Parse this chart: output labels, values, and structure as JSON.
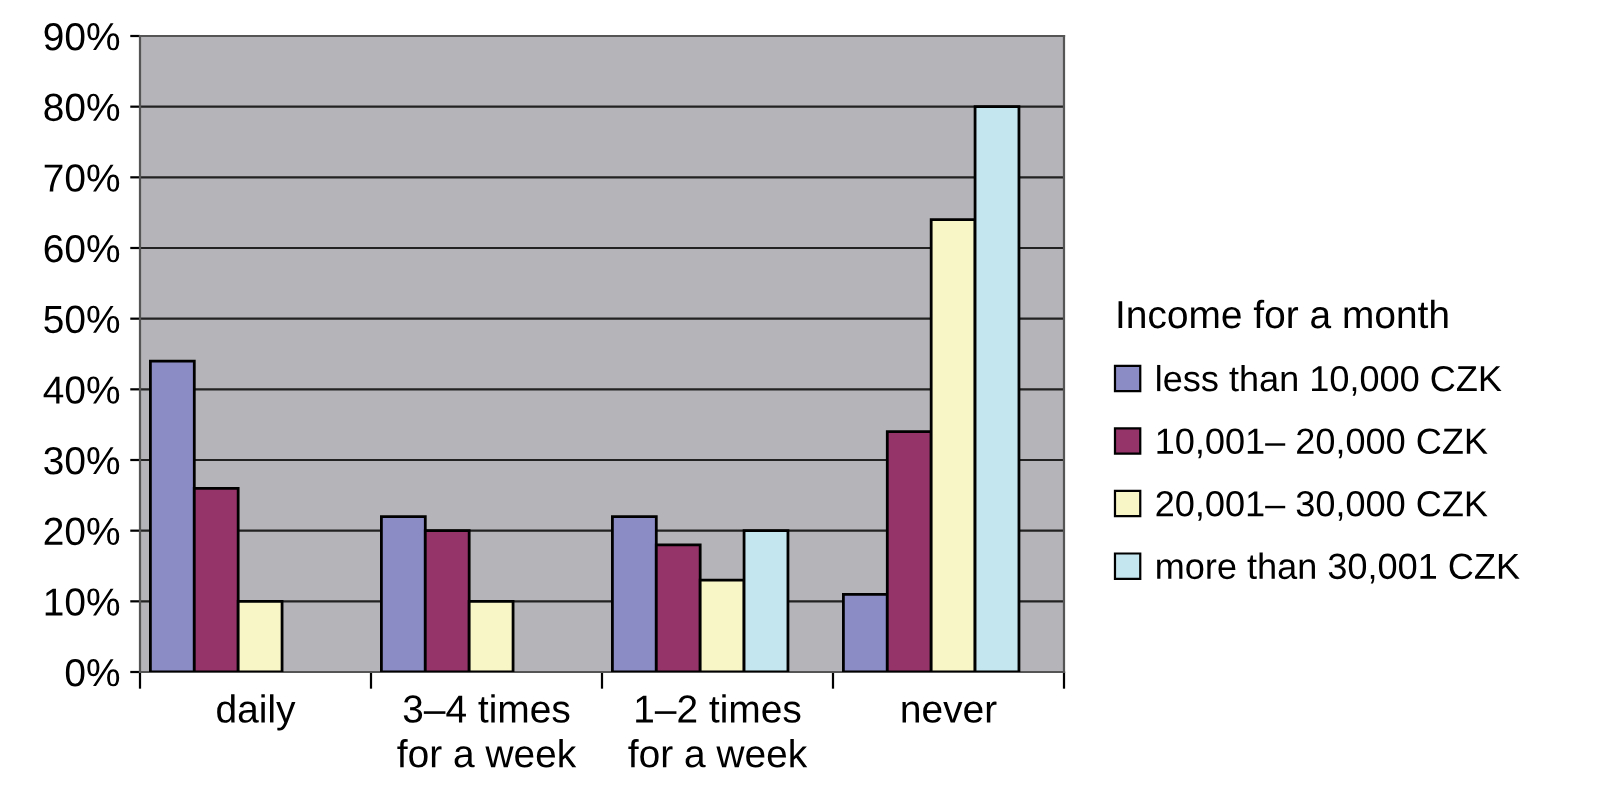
{
  "chart_data": {
    "type": "bar",
    "legend_title": "Income for a month",
    "categories": [
      "daily",
      "3–4 times\nfor a week",
      "1–2 times\nfor a week",
      "never"
    ],
    "series": [
      {
        "name": "less than 10,000 CZK",
        "color": "#8b8bc5",
        "values": [
          44,
          22,
          22,
          11
        ]
      },
      {
        "name": "10,001– 20,000 CZK",
        "color": "#943468",
        "values": [
          26,
          20,
          18,
          34
        ]
      },
      {
        "name": "20,001– 30,000 CZK",
        "color": "#f8f5c6",
        "values": [
          10,
          10,
          13,
          64
        ]
      },
      {
        "name": "more than 30,001 CZK",
        "color": "#c4e6ef",
        "values": [
          null,
          null,
          20,
          80
        ]
      }
    ],
    "ylim": [
      0,
      90
    ],
    "yticks": [
      {
        "value": 0,
        "label": "0%"
      },
      {
        "value": 10,
        "label": "10%"
      },
      {
        "value": 20,
        "label": "20%"
      },
      {
        "value": 30,
        "label": "30%"
      },
      {
        "value": 40,
        "label": "40%"
      },
      {
        "value": 50,
        "label": "50%"
      },
      {
        "value": 60,
        "label": "60%"
      },
      {
        "value": 70,
        "label": "70%"
      },
      {
        "value": 80,
        "label": "80%"
      },
      {
        "value": 90,
        "label": "90%"
      }
    ],
    "grid": "y",
    "legend": "right"
  }
}
